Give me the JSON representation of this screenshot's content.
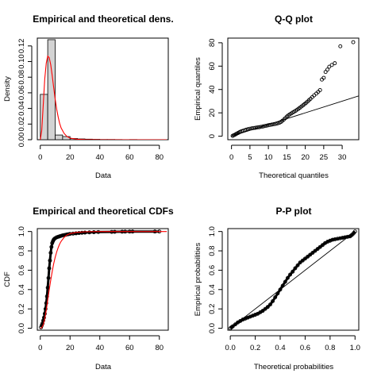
{
  "chart_data": [
    {
      "type": "bar",
      "title": "Empirical and theoretical dens.",
      "xlabel": "Data",
      "ylabel": "Density",
      "xlim": [
        -2,
        86
      ],
      "ylim": [
        0,
        0.13
      ],
      "xticks": [
        0,
        20,
        40,
        60,
        80
      ],
      "xtick_labels": [
        "0",
        "20",
        "40",
        "60",
        "80"
      ],
      "yticks": [
        0,
        0.02,
        0.04,
        0.06,
        0.08,
        0.1,
        0.12
      ],
      "ytick_labels": [
        "0.00",
        "0.02",
        "0.04",
        "0.06",
        "0.08",
        "0.10",
        "0.12"
      ],
      "hist_bins": [
        {
          "x0": 0,
          "x1": 5,
          "density": 0.058
        },
        {
          "x0": 5,
          "x1": 10,
          "density": 0.128
        },
        {
          "x0": 10,
          "x1": 15,
          "density": 0.006
        },
        {
          "x0": 15,
          "x1": 20,
          "density": 0.004
        },
        {
          "x0": 20,
          "x1": 25,
          "density": 0.0015
        },
        {
          "x0": 25,
          "x1": 30,
          "density": 0.001
        },
        {
          "x0": 30,
          "x1": 35,
          "density": 0.0007
        },
        {
          "x0": 35,
          "x1": 40,
          "density": 0.0005
        },
        {
          "x0": 40,
          "x1": 45,
          "density": 0.0003
        },
        {
          "x0": 45,
          "x1": 50,
          "density": 0.0003
        },
        {
          "x0": 50,
          "x1": 55,
          "density": 0.0002
        },
        {
          "x0": 55,
          "x1": 60,
          "density": 0.0001
        },
        {
          "x0": 60,
          "x1": 65,
          "density": 0.0002
        }
      ],
      "density_curve": {
        "x": [
          0,
          1,
          2,
          3,
          4,
          5,
          6,
          7,
          8,
          9,
          10,
          11,
          12,
          13,
          14,
          16,
          18,
          20,
          25,
          30,
          40,
          50,
          60,
          70,
          85
        ],
        "y": [
          0,
          0.012,
          0.045,
          0.078,
          0.098,
          0.107,
          0.105,
          0.096,
          0.082,
          0.067,
          0.052,
          0.039,
          0.029,
          0.021,
          0.015,
          0.008,
          0.004,
          0.002,
          0.0006,
          0.0002,
          5e-05,
          0,
          0,
          0,
          0
        ]
      },
      "colors": {
        "bars": "#d3d3d3",
        "curve": "#ff0000"
      }
    },
    {
      "type": "scatter",
      "title": "Q-Q plot",
      "xlabel": "Theoretical quantiles",
      "ylabel": "Empirical quantiles",
      "xlim": [
        -1,
        34.5
      ],
      "ylim": [
        -3,
        84
      ],
      "xticks": [
        0,
        5,
        10,
        15,
        20,
        25,
        30
      ],
      "xtick_labels": [
        "0",
        "5",
        "10",
        "15",
        "20",
        "25",
        "30"
      ],
      "yticks": [
        0,
        20,
        40,
        60,
        80
      ],
      "ytick_labels": [
        "0",
        "20",
        "40",
        "60",
        "80"
      ],
      "x": [
        0.3,
        0.6,
        0.9,
        1.2,
        1.5,
        1.8,
        2.1,
        2.4,
        2.8,
        3.2,
        3.6,
        4.0,
        4.5,
        5.0,
        5.5,
        6.0,
        6.5,
        7.0,
        7.5,
        8.0,
        8.5,
        9.0,
        9.5,
        10.0,
        10.5,
        11.0,
        11.5,
        12.0,
        12.5,
        13.0,
        13.4,
        13.8,
        14.2,
        14.6,
        15.0,
        15.4,
        15.8,
        16.2,
        16.6,
        17.0,
        17.4,
        17.8,
        18.2,
        18.6,
        19.0,
        19.4,
        19.8,
        20.2,
        20.6,
        21.0,
        21.4,
        21.9,
        22.4,
        23.0,
        23.5,
        24.0,
        24.5,
        25.0,
        25.5,
        26.0,
        26.5,
        27.2,
        28.0,
        29.5,
        33.0
      ],
      "y": [
        0.3,
        0.8,
        1.2,
        1.8,
        2.3,
        2.8,
        3.3,
        3.8,
        4.3,
        4.7,
        5.1,
        5.6,
        6.0,
        6.4,
        6.7,
        7.0,
        7.2,
        7.5,
        7.7,
        8.0,
        8.3,
        8.7,
        9.0,
        9.4,
        9.7,
        10.0,
        10.3,
        10.6,
        11.0,
        11.5,
        12.2,
        13.2,
        14.3,
        15.5,
        16.8,
        17.8,
        18.7,
        19.5,
        20.3,
        21.0,
        21.8,
        22.7,
        23.6,
        24.5,
        25.5,
        26.5,
        27.5,
        28.5,
        29.6,
        30.8,
        32.0,
        33.5,
        35.0,
        36.5,
        38.0,
        39.5,
        48.5,
        50.0,
        55.0,
        57.0,
        59.5,
        61.0,
        62.5,
        77.0,
        80.5
      ],
      "ref_line": {
        "x": [
          0,
          34.5
        ],
        "y": [
          0,
          34.5
        ]
      },
      "colors": {
        "points": "#000000",
        "line": "#000000"
      }
    },
    {
      "type": "line",
      "title": "Empirical and theoretical CDFs",
      "xlabel": "Data",
      "ylabel": "CDF",
      "xlim": [
        -2,
        86
      ],
      "ylim": [
        -0.02,
        1.03
      ],
      "xticks": [
        0,
        20,
        40,
        60,
        80
      ],
      "xtick_labels": [
        "0",
        "20",
        "40",
        "60",
        "80"
      ],
      "yticks": [
        0,
        0.2,
        0.4,
        0.6,
        0.8,
        1.0
      ],
      "ytick_labels": [
        "0.0",
        "0.2",
        "0.4",
        "0.6",
        "0.8",
        "1.0"
      ],
      "empirical": {
        "x": [
          0.5,
          1,
          1.5,
          2,
          2.5,
          3,
          3.5,
          4,
          4.5,
          5,
          5.5,
          6,
          6.5,
          7,
          7.5,
          8,
          8.5,
          9,
          9.5,
          10,
          11,
          12,
          13,
          14,
          15,
          16,
          17,
          18,
          19,
          20,
          22,
          24,
          26,
          28,
          30,
          33,
          36,
          39,
          48,
          50,
          55,
          57,
          60,
          62,
          77,
          80
        ],
        "y": [
          0.01,
          0.03,
          0.05,
          0.08,
          0.11,
          0.15,
          0.2,
          0.26,
          0.33,
          0.42,
          0.52,
          0.62,
          0.7,
          0.78,
          0.84,
          0.88,
          0.9,
          0.915,
          0.925,
          0.93,
          0.94,
          0.945,
          0.95,
          0.955,
          0.96,
          0.963,
          0.966,
          0.97,
          0.972,
          0.975,
          0.978,
          0.981,
          0.984,
          0.987,
          0.989,
          0.991,
          0.993,
          0.995,
          0.996,
          0.997,
          0.998,
          0.9985,
          0.999,
          0.9993,
          0.9996,
          1.0
        ]
      },
      "theoretical": {
        "x": [
          0,
          1,
          2,
          3,
          4,
          5,
          6,
          7,
          8,
          9,
          10,
          11,
          12,
          13,
          14,
          16,
          18,
          20,
          24,
          30,
          40,
          60,
          85
        ],
        "y": [
          0,
          0.006,
          0.035,
          0.097,
          0.186,
          0.289,
          0.396,
          0.497,
          0.587,
          0.666,
          0.733,
          0.788,
          0.833,
          0.87,
          0.899,
          0.94,
          0.964,
          0.978,
          0.991,
          0.997,
          0.9995,
          1.0,
          1.0
        ]
      },
      "colors": {
        "empirical": "#000000",
        "theoretical": "#ff0000"
      }
    },
    {
      "type": "scatter",
      "title": "P-P plot",
      "xlabel": "Theoretical probabilities",
      "ylabel": "Empirical probabilities",
      "xlim": [
        -0.02,
        1.03
      ],
      "ylim": [
        -0.02,
        1.03
      ],
      "xticks": [
        0,
        0.2,
        0.4,
        0.6,
        0.8,
        1.0
      ],
      "xtick_labels": [
        "0.0",
        "0.2",
        "0.4",
        "0.6",
        "0.8",
        "1.0"
      ],
      "yticks": [
        0,
        0.2,
        0.4,
        0.6,
        0.8,
        1.0
      ],
      "ytick_labels": [
        "0.0",
        "0.2",
        "0.4",
        "0.6",
        "0.8",
        "1.0"
      ],
      "x": [
        0.0,
        0.01,
        0.02,
        0.04,
        0.06,
        0.08,
        0.1,
        0.12,
        0.14,
        0.16,
        0.18,
        0.2,
        0.22,
        0.24,
        0.26,
        0.28,
        0.3,
        0.32,
        0.34,
        0.36,
        0.38,
        0.4,
        0.42,
        0.44,
        0.46,
        0.48,
        0.5,
        0.52,
        0.54,
        0.56,
        0.58,
        0.6,
        0.62,
        0.64,
        0.66,
        0.68,
        0.7,
        0.72,
        0.74,
        0.76,
        0.78,
        0.8,
        0.82,
        0.84,
        0.86,
        0.88,
        0.9,
        0.92,
        0.94,
        0.96,
        0.97,
        0.98,
        0.99,
        1.0
      ],
      "y": [
        0.0,
        0.01,
        0.02,
        0.04,
        0.06,
        0.075,
        0.09,
        0.1,
        0.11,
        0.12,
        0.13,
        0.14,
        0.15,
        0.165,
        0.18,
        0.2,
        0.22,
        0.245,
        0.28,
        0.32,
        0.36,
        0.4,
        0.44,
        0.48,
        0.52,
        0.555,
        0.585,
        0.62,
        0.65,
        0.68,
        0.7,
        0.72,
        0.74,
        0.76,
        0.78,
        0.8,
        0.82,
        0.84,
        0.86,
        0.88,
        0.895,
        0.905,
        0.915,
        0.92,
        0.925,
        0.93,
        0.935,
        0.94,
        0.945,
        0.95,
        0.96,
        0.97,
        0.985,
        1.0
      ],
      "ref_line": {
        "x": [
          0,
          1
        ],
        "y": [
          0,
          1
        ]
      },
      "colors": {
        "points": "#000000",
        "line": "#000000"
      }
    }
  ]
}
